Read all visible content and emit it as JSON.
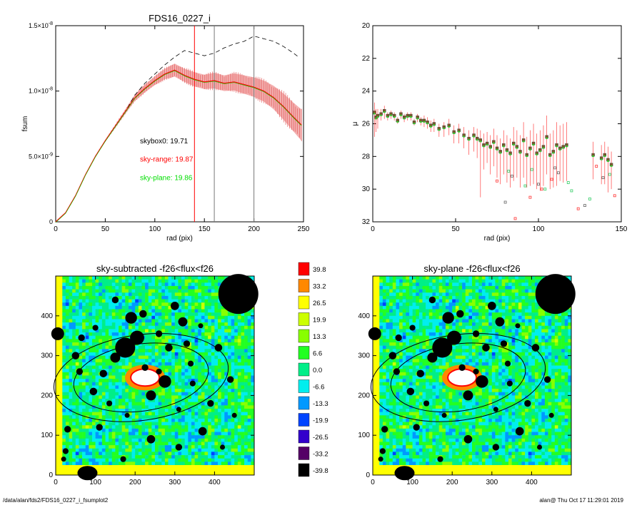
{
  "footer": {
    "path": "/data/alan/fds2/FDS16_0227_i_fsumplot2",
    "user_time": "alan@  Thu Oct 17 11:29:01 2019"
  },
  "colors": {
    "black": "#000000",
    "red": "#ff0000",
    "green": "#00dd00",
    "shade": "#f3b0b0",
    "gray": "#777777"
  },
  "chart_data": [
    {
      "type": "line",
      "title": "FDS16_0227_i",
      "xlabel": "rad (pix)",
      "ylabel": "fsum",
      "xlim": [
        0,
        250
      ],
      "ylim": [
        0,
        1.5e-08
      ],
      "xticks": [
        0,
        50,
        100,
        150,
        200,
        250
      ],
      "yticks": [
        {
          "v": 0,
          "label": "0"
        },
        {
          "v": 5e-09,
          "label": "5.0×10-9"
        },
        {
          "v": 1e-08,
          "label": "1.0×10-8"
        },
        {
          "v": 1.5e-08,
          "label": "1.5×10-8"
        }
      ],
      "vlines": [
        {
          "x": 140,
          "color": "#ff0000"
        },
        {
          "x": 160,
          "color": "#777777"
        },
        {
          "x": 200,
          "color": "#777777"
        }
      ],
      "annotations": [
        {
          "text": "skybox0: 19.71",
          "x": 85,
          "y": 6e-09,
          "color": "#000000"
        },
        {
          "text": "sky-range: 19.87",
          "x": 85,
          "y": 4.6e-09,
          "color": "#ff0000"
        },
        {
          "text": "sky-plane: 19.86",
          "x": 85,
          "y": 3.2e-09,
          "color": "#00dd00"
        }
      ],
      "series": [
        {
          "style": "dashed",
          "color": "#000000",
          "x": [
            0,
            10,
            20,
            30,
            40,
            50,
            60,
            70,
            80,
            90,
            100,
            110,
            120,
            130,
            140,
            150,
            160,
            170,
            180,
            190,
            200,
            210,
            220,
            230,
            240,
            245
          ],
          "y": [
            0,
            7e-10,
            2e-09,
            3.6e-09,
            5e-09,
            6.2e-09,
            7.3e-09,
            8.4e-09,
            9.7e-09,
            1.06e-08,
            1.13e-08,
            1.2e-08,
            1.26e-08,
            1.31e-08,
            1.29e-08,
            1.27e-08,
            1.29e-08,
            1.33e-08,
            1.36e-08,
            1.38e-08,
            1.42e-08,
            1.4e-08,
            1.38e-08,
            1.34e-08,
            1.29e-08,
            1.26e-08
          ]
        },
        {
          "style": "solid",
          "color": "#ff0000",
          "error_band": true,
          "x": [
            0,
            10,
            20,
            30,
            40,
            50,
            60,
            70,
            80,
            90,
            100,
            110,
            120,
            130,
            140,
            150,
            160,
            170,
            180,
            190,
            200,
            210,
            220,
            230,
            240,
            248
          ],
          "y": [
            0,
            7e-10,
            2e-09,
            3.6e-09,
            5e-09,
            6.2e-09,
            7.3e-09,
            8.4e-09,
            9.5e-09,
            1.02e-08,
            1.08e-08,
            1.13e-08,
            1.16e-08,
            1.12e-08,
            1.09e-08,
            1.07e-08,
            1.08e-08,
            1.06e-08,
            1.07e-08,
            1.05e-08,
            1.03e-08,
            1e-08,
            9.5e-09,
            8.8e-09,
            8e-09,
            7.4e-09
          ],
          "err": [
            0,
            0,
            0,
            0,
            5e-11,
            8e-11,
            1.2e-10,
            1.8e-10,
            2.5e-10,
            3e-10,
            3.5e-10,
            4e-10,
            5e-10,
            5e-10,
            5.5e-10,
            5.5e-10,
            6e-10,
            6e-10,
            6.5e-10,
            7e-10,
            7.5e-10,
            8e-10,
            9e-10,
            1e-09,
            1.1e-09,
            1.2e-09
          ]
        }
      ]
    },
    {
      "type": "scatter",
      "xlabel": "rad (pix)",
      "ylabel": "μ",
      "xlim": [
        0,
        150
      ],
      "ylim": [
        32,
        20
      ],
      "xticks": [
        0,
        50,
        100,
        150
      ],
      "yticks": [
        20,
        22,
        24,
        26,
        28,
        30,
        32
      ],
      "points": {
        "x": [
          1,
          2,
          3,
          5,
          7,
          9,
          11,
          13,
          15,
          17,
          19,
          21,
          23,
          25,
          27,
          29,
          31,
          33,
          35,
          37,
          40,
          43,
          46,
          49,
          52,
          55,
          58,
          61,
          63,
          65,
          67,
          69,
          71,
          73,
          75,
          77,
          79,
          81,
          83,
          85,
          87,
          89,
          91,
          93,
          95,
          97,
          99,
          101,
          103,
          105,
          107,
          109,
          111,
          113,
          115,
          117,
          133,
          138,
          140,
          142,
          144
        ],
        "y": [
          25.3,
          25.6,
          25.5,
          25.4,
          25.2,
          25.5,
          25.4,
          25.5,
          25.8,
          25.4,
          25.6,
          25.5,
          25.5,
          25.9,
          25.6,
          25.8,
          25.8,
          25.9,
          26.1,
          26.0,
          26.3,
          26.2,
          26.1,
          26.5,
          26.4,
          26.7,
          26.9,
          26.7,
          26.9,
          27.0,
          27.3,
          27.2,
          27.4,
          27.1,
          27.5,
          27.7,
          27.3,
          27.6,
          27.8,
          27.2,
          27.4,
          27.7,
          27.0,
          27.9,
          27.5,
          27.2,
          27.8,
          27.6,
          27.4,
          26.8,
          27.9,
          27.7,
          27.3,
          27.5,
          27.4,
          27.3,
          27.9,
          28.1,
          27.9,
          28.2,
          28.5
        ],
        "err_lo": [
          1.5,
          0.9,
          0.8,
          0.4,
          0.5,
          0.3,
          0.3,
          0.3,
          0.2,
          0.3,
          0.3,
          0.3,
          0.3,
          0.2,
          0.3,
          0.3,
          0.4,
          0.4,
          0.4,
          0.5,
          0.5,
          0.6,
          0.6,
          0.7,
          0.8,
          0.8,
          1.0,
          1.0,
          1.2,
          3.5,
          1.5,
          1.2,
          1.7,
          1.5,
          1.8,
          2.0,
          1.8,
          2.0,
          2.1,
          2.3,
          1.9,
          2.2,
          2.3,
          2.0,
          2.3,
          2.5,
          2.2,
          2.5,
          2.4,
          2.3,
          2.1,
          2.2,
          2.5,
          2.0,
          2.2,
          2.2,
          1.5,
          1.6,
          1.8,
          2.0,
          1.5
        ],
        "err_hi": [
          0.6,
          0.5,
          0.4,
          0.3,
          0.3,
          0.2,
          0.2,
          0.2,
          0.2,
          0.2,
          0.2,
          0.2,
          0.2,
          0.2,
          0.2,
          0.2,
          0.3,
          0.3,
          0.3,
          0.3,
          0.3,
          0.3,
          0.4,
          0.4,
          0.4,
          0.5,
          0.5,
          0.5,
          0.6,
          0.6,
          0.7,
          0.7,
          0.7,
          0.8,
          0.8,
          0.8,
          0.9,
          0.9,
          0.9,
          1.0,
          1.0,
          1.0,
          1.1,
          1.1,
          1.1,
          1.2,
          1.2,
          1.2,
          1.3,
          1.3,
          1.3,
          1.3,
          1.4,
          1.4,
          1.4,
          1.4,
          0.8,
          0.8,
          0.8,
          0.8,
          0.8
        ]
      },
      "outliers": {
        "x": [
          75,
          80,
          82,
          86,
          89,
          92,
          95,
          100,
          104,
          108,
          112,
          120,
          124,
          128,
          131,
          135,
          139,
          143,
          146,
          84,
          96,
          102,
          110,
          118
        ],
        "y": [
          29.5,
          30.8,
          28.9,
          31.8,
          32.1,
          29.8,
          30.5,
          29.7,
          30.0,
          29.4,
          29.0,
          30.1,
          31.2,
          31.0,
          30.6,
          28.6,
          29.3,
          29.1,
          30.4,
          29.2,
          28.8,
          30.0,
          28.7,
          29.6
        ]
      }
    },
    {
      "type": "heatmap",
      "title": "sky-subtracted -f26<flux<f26",
      "xlim": [
        0,
        500
      ],
      "ylim": [
        0,
        500
      ],
      "xticks": [
        0,
        100,
        200,
        300,
        400
      ],
      "yticks": [
        0,
        100,
        200,
        300,
        400
      ]
    },
    {
      "type": "heatmap",
      "title": "sky-plane -f26<flux<f26",
      "xlim": [
        0,
        500
      ],
      "ylim": [
        0,
        500
      ],
      "xticks": [
        0,
        100,
        200,
        300,
        400
      ],
      "yticks": [
        0,
        100,
        200,
        300,
        400
      ]
    },
    {
      "type": "colorbar",
      "levels": [
        "39.8",
        "33.2",
        "26.5",
        "19.9",
        "13.3",
        "6.6",
        "0.0",
        "-6.6",
        "-13.3",
        "-19.9",
        "-26.5",
        "-33.2",
        "-39.8"
      ],
      "colors": [
        "#ff0000",
        "#ff8800",
        "#ffff00",
        "#ccff00",
        "#88ff00",
        "#22ff22",
        "#00ee88",
        "#00eeee",
        "#0099ff",
        "#0044ff",
        "#3300cc",
        "#550066",
        "#000000"
      ]
    }
  ]
}
